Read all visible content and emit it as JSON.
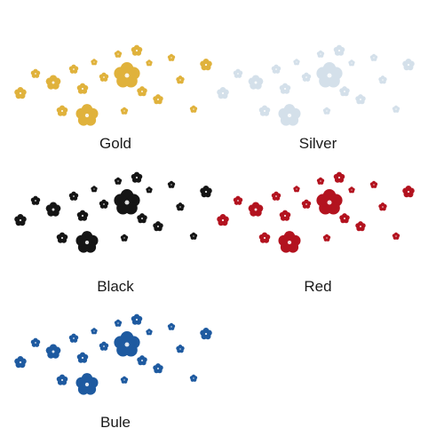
{
  "variants": [
    {
      "label": "Gold",
      "color": "#e0b23c"
    },
    {
      "label": "Silver",
      "color": "#d4e0ea"
    },
    {
      "label": "Black",
      "color": "#151515"
    },
    {
      "label": "Red",
      "color": "#b3131f"
    },
    {
      "label": "Bule",
      "color": "#1e5aa0"
    }
  ]
}
